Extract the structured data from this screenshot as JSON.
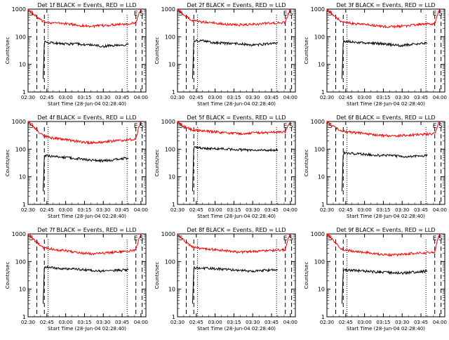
{
  "figure": {
    "ylabel": "Counts/sec",
    "xlabel": "Start Time (28-Jun-04 02:28:40)",
    "x_ticks": [
      "02:30",
      "02:45",
      "03:00",
      "03:15",
      "03:30",
      "03:45",
      "04:00"
    ],
    "y_ticks": [
      "1",
      "10",
      "100",
      "1000"
    ],
    "markers": {
      "s": "S",
      "e": "E"
    },
    "colors": {
      "events": "#000000",
      "lld": "#ff0000"
    }
  },
  "chart_data": [
    {
      "type": "line",
      "title": "Det 1f BLACK = Events, RED = LLD",
      "xlabel": "Start Time (28-Jun-04 02:28:40)",
      "ylabel": "Counts/sec",
      "ylim": [
        1,
        1000
      ],
      "y_scale": "log",
      "series": [
        {
          "color": "#ff0000",
          "x": [
            "02:30",
            "02:35",
            "02:42",
            "02:50",
            "03:00",
            "03:10",
            "03:20",
            "03:30",
            "03:40",
            "03:50",
            "03:56",
            "03:58",
            "04:00"
          ],
          "values": [
            1000,
            600,
            350,
            320,
            300,
            260,
            240,
            250,
            280,
            300,
            310,
            600,
            1000
          ]
        },
        {
          "color": "#000000",
          "x": [
            "02:42",
            "02:43",
            "02:50",
            "03:00",
            "03:10",
            "03:20",
            "03:30",
            "03:40",
            "03:50"
          ],
          "values": [
            3,
            65,
            60,
            55,
            55,
            50,
            45,
            50,
            52
          ]
        }
      ]
    },
    {
      "type": "line",
      "title": "Det 2f BLACK = Events, RED = LLD",
      "xlabel": "Start Time (28-Jun-04 02:28:40)",
      "ylabel": "Counts/sec",
      "ylim": [
        1,
        1000
      ],
      "y_scale": "log",
      "series": [
        {
          "color": "#ff0000",
          "x": [
            "02:30",
            "02:35",
            "02:42",
            "02:50",
            "03:00",
            "03:10",
            "03:20",
            "03:30",
            "03:40",
            "03:50",
            "03:56",
            "03:58",
            "04:00"
          ],
          "values": [
            1000,
            600,
            380,
            340,
            320,
            280,
            270,
            280,
            300,
            320,
            330,
            600,
            1000
          ]
        },
        {
          "color": "#000000",
          "x": [
            "02:42",
            "02:43",
            "02:50",
            "03:00",
            "03:10",
            "03:20",
            "03:30",
            "03:40",
            "03:50"
          ],
          "values": [
            3,
            75,
            70,
            60,
            58,
            55,
            50,
            55,
            60
          ]
        }
      ]
    },
    {
      "type": "line",
      "title": "Det 3f BLACK = Events, RED = LLD",
      "xlabel": "Start Time (28-Jun-04 02:28:40)",
      "ylabel": "Counts/sec",
      "ylim": [
        1,
        1000
      ],
      "y_scale": "log",
      "series": [
        {
          "color": "#ff0000",
          "x": [
            "02:30",
            "02:35",
            "02:42",
            "02:50",
            "03:00",
            "03:10",
            "03:20",
            "03:30",
            "03:40",
            "03:50",
            "03:56",
            "03:58",
            "04:00"
          ],
          "values": [
            1000,
            600,
            340,
            300,
            280,
            250,
            230,
            240,
            270,
            290,
            300,
            600,
            1000
          ]
        },
        {
          "color": "#000000",
          "x": [
            "02:42",
            "02:43",
            "02:50",
            "03:00",
            "03:10",
            "03:20",
            "03:30",
            "03:40",
            "03:50"
          ],
          "values": [
            3,
            70,
            65,
            60,
            58,
            52,
            48,
            55,
            58
          ]
        }
      ]
    },
    {
      "type": "line",
      "title": "Det 4f BLACK = Events, RED = LLD",
      "xlabel": "Start Time (28-Jun-04 02:28:40)",
      "ylabel": "Counts/sec",
      "ylim": [
        1,
        1000
      ],
      "y_scale": "log",
      "series": [
        {
          "color": "#ff0000",
          "x": [
            "02:30",
            "02:35",
            "02:42",
            "02:50",
            "03:00",
            "03:10",
            "03:20",
            "03:30",
            "03:40",
            "03:50",
            "03:56",
            "03:58",
            "04:00"
          ],
          "values": [
            1000,
            600,
            300,
            250,
            220,
            190,
            170,
            180,
            200,
            220,
            230,
            600,
            1000
          ]
        },
        {
          "color": "#000000",
          "x": [
            "02:42",
            "02:43",
            "02:50",
            "03:00",
            "03:10",
            "03:20",
            "03:30",
            "03:40",
            "03:50"
          ],
          "values": [
            3,
            60,
            55,
            50,
            45,
            40,
            38,
            42,
            48
          ]
        }
      ]
    },
    {
      "type": "line",
      "title": "Det 5f BLACK = Events, RED = LLD",
      "xlabel": "Start Time (28-Jun-04 02:28:40)",
      "ylabel": "Counts/sec",
      "ylim": [
        1,
        1000
      ],
      "y_scale": "log",
      "series": [
        {
          "color": "#ff0000",
          "x": [
            "02:30",
            "02:35",
            "02:42",
            "02:50",
            "03:00",
            "03:10",
            "03:20",
            "03:30",
            "03:40",
            "03:50",
            "03:56",
            "03:58",
            "04:00"
          ],
          "values": [
            1000,
            650,
            500,
            450,
            420,
            380,
            360,
            380,
            400,
            410,
            420,
            650,
            1000
          ]
        },
        {
          "color": "#000000",
          "x": [
            "02:42",
            "02:43",
            "02:50",
            "03:00",
            "03:10",
            "03:20",
            "03:30",
            "03:40",
            "03:50"
          ],
          "values": [
            3,
            120,
            110,
            105,
            100,
            95,
            90,
            92,
            95
          ]
        }
      ]
    },
    {
      "type": "line",
      "title": "Det 6f BLACK = Events, RED = LLD",
      "xlabel": "Start Time (28-Jun-04 02:28:40)",
      "ylabel": "Counts/sec",
      "ylim": [
        1,
        1000
      ],
      "y_scale": "log",
      "series": [
        {
          "color": "#ff0000",
          "x": [
            "02:30",
            "02:35",
            "02:42",
            "02:50",
            "03:00",
            "03:10",
            "03:20",
            "03:30",
            "03:40",
            "03:50",
            "03:56",
            "03:58",
            "04:00"
          ],
          "values": [
            1000,
            650,
            450,
            400,
            370,
            320,
            300,
            310,
            330,
            350,
            360,
            650,
            1000
          ]
        },
        {
          "color": "#000000",
          "x": [
            "02:42",
            "02:43",
            "02:50",
            "03:00",
            "03:10",
            "03:20",
            "03:30",
            "03:40",
            "03:50"
          ],
          "values": [
            3,
            75,
            70,
            65,
            60,
            58,
            55,
            55,
            58
          ]
        }
      ]
    },
    {
      "type": "line",
      "title": "Det 7f BLACK = Events, RED = LLD",
      "xlabel": "Start Time (28-Jun-04 02:28:40)",
      "ylabel": "Counts/sec",
      "ylim": [
        1,
        1000
      ],
      "y_scale": "log",
      "series": [
        {
          "color": "#ff0000",
          "x": [
            "02:30",
            "02:35",
            "02:42",
            "02:50",
            "03:00",
            "03:10",
            "03:20",
            "03:30",
            "03:40",
            "03:50",
            "03:56",
            "03:58",
            "04:00"
          ],
          "values": [
            1000,
            600,
            320,
            280,
            250,
            210,
            190,
            200,
            220,
            240,
            250,
            600,
            1000
          ]
        },
        {
          "color": "#000000",
          "x": [
            "02:42",
            "02:43",
            "02:50",
            "03:00",
            "03:10",
            "03:20",
            "03:30",
            "03:40",
            "03:50"
          ],
          "values": [
            3,
            65,
            60,
            55,
            52,
            48,
            45,
            48,
            50
          ]
        }
      ]
    },
    {
      "type": "line",
      "title": "Det 8f BLACK = Events, RED = LLD",
      "xlabel": "Start Time (28-Jun-04 02:28:40)",
      "ylabel": "Counts/sec",
      "ylim": [
        1,
        1000
      ],
      "y_scale": "log",
      "series": [
        {
          "color": "#ff0000",
          "x": [
            "02:30",
            "02:35",
            "02:42",
            "02:50",
            "03:00",
            "03:10",
            "03:20",
            "03:30",
            "03:40",
            "03:50",
            "03:56",
            "03:58",
            "04:00"
          ],
          "values": [
            1000,
            600,
            330,
            290,
            270,
            240,
            220,
            230,
            250,
            260,
            270,
            600,
            1000
          ]
        },
        {
          "color": "#000000",
          "x": [
            "02:42",
            "02:43",
            "02:50",
            "03:00",
            "03:10",
            "03:20",
            "03:30",
            "03:40",
            "03:50"
          ],
          "values": [
            3,
            60,
            58,
            55,
            52,
            48,
            45,
            48,
            50
          ]
        }
      ]
    },
    {
      "type": "line",
      "title": "Det 9f BLACK = Events, RED = LLD",
      "xlabel": "Start Time (28-Jun-04 02:28:40)",
      "ylabel": "Counts/sec",
      "ylim": [
        1,
        1000
      ],
      "y_scale": "log",
      "series": [
        {
          "color": "#ff0000",
          "x": [
            "02:30",
            "02:35",
            "02:42",
            "02:50",
            "03:00",
            "03:10",
            "03:20",
            "03:30",
            "03:40",
            "03:50",
            "03:56",
            "03:58",
            "04:00"
          ],
          "values": [
            1000,
            600,
            280,
            240,
            220,
            190,
            170,
            180,
            200,
            210,
            220,
            600,
            1000
          ]
        },
        {
          "color": "#000000",
          "x": [
            "02:42",
            "02:43",
            "02:50",
            "03:00",
            "03:10",
            "03:20",
            "03:30",
            "03:40",
            "03:50"
          ],
          "values": [
            3,
            50,
            48,
            45,
            42,
            40,
            38,
            42,
            45
          ]
        }
      ]
    }
  ]
}
